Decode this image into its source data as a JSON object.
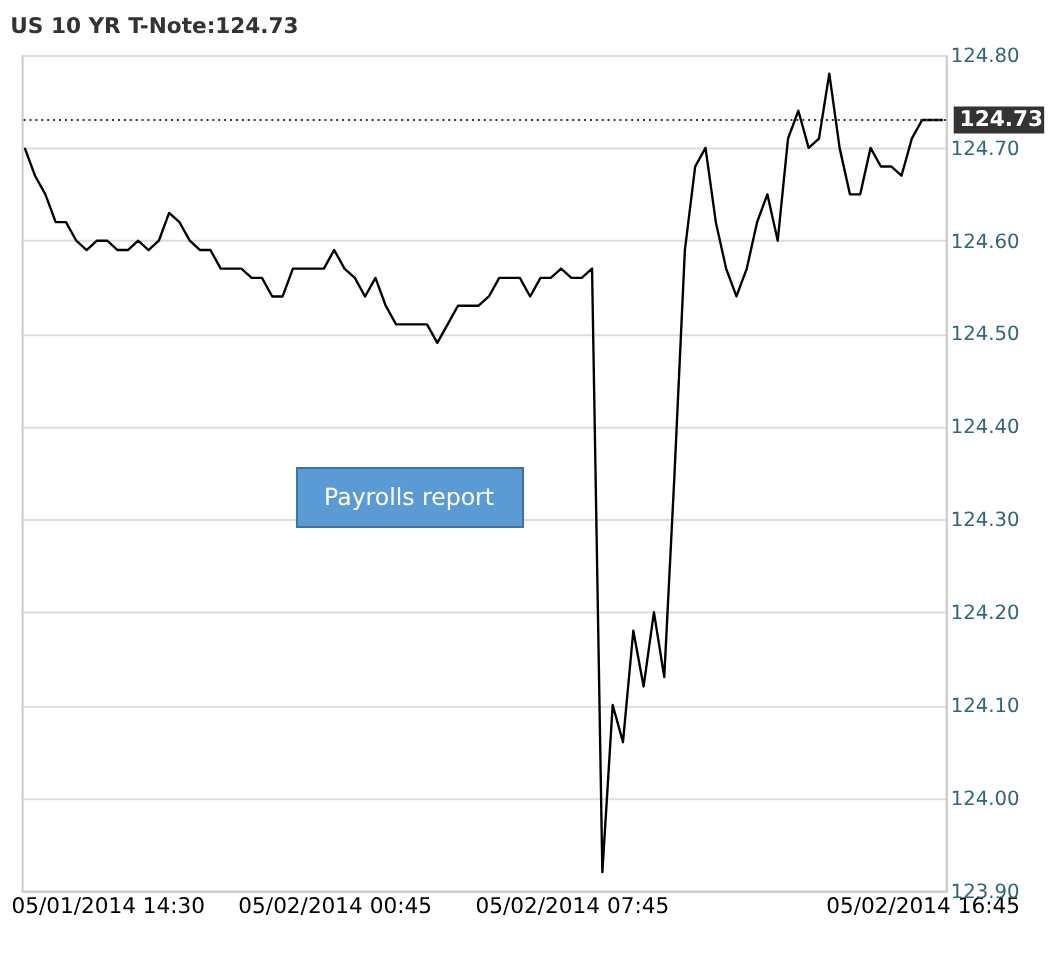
{
  "chart_data": {
    "type": "line",
    "title": "US 10 YR T-Note:124.73",
    "categories": [
      null,
      null,
      null,
      null,
      null,
      null,
      null,
      null,
      "05/01/2014 14:30",
      null,
      null,
      null,
      null,
      null,
      null,
      null,
      null,
      null,
      null,
      null,
      null,
      null,
      null,
      null,
      null,
      null,
      null,
      null,
      null,
      null,
      "05/02/2014 00:45",
      null,
      null,
      null,
      null,
      null,
      null,
      null,
      null,
      null,
      null,
      null,
      null,
      null,
      null,
      null,
      null,
      null,
      null,
      null,
      null,
      null,
      null,
      "05/02/2014 07:45",
      null,
      null,
      null,
      null,
      null,
      null,
      null,
      null,
      null,
      null,
      null,
      null,
      null,
      null,
      null,
      null,
      null,
      null,
      null,
      null,
      null,
      null,
      null,
      null,
      null,
      null,
      null,
      null,
      null,
      null,
      null,
      null,
      null,
      "05/02/2014 16:45",
      null,
      null
    ],
    "series": [
      {
        "color": "#000000",
        "values": [
          124.7,
          124.67,
          124.65,
          124.62,
          124.62,
          124.6,
          124.59,
          124.6,
          124.6,
          124.59,
          124.59,
          124.6,
          124.59,
          124.6,
          124.63,
          124.62,
          124.6,
          124.59,
          124.59,
          124.57,
          124.57,
          124.57,
          124.56,
          124.56,
          124.54,
          124.54,
          124.57,
          124.57,
          124.57,
          124.57,
          124.59,
          124.57,
          124.56,
          124.54,
          124.56,
          124.53,
          124.51,
          124.51,
          124.51,
          124.51,
          124.49,
          124.51,
          124.53,
          124.53,
          124.53,
          124.54,
          124.56,
          124.56,
          124.56,
          124.54,
          124.56,
          124.56,
          124.57,
          124.56,
          124.56,
          124.57,
          123.92,
          124.1,
          124.06,
          124.18,
          124.12,
          124.2,
          124.13,
          124.35,
          124.59,
          124.68,
          124.7,
          124.62,
          124.57,
          124.54,
          124.57,
          124.62,
          124.65,
          124.6,
          124.71,
          124.74,
          124.7,
          124.71,
          124.78,
          124.7,
          124.65,
          124.65,
          124.7,
          124.68,
          124.68,
          124.67,
          124.71,
          124.73,
          124.73,
          124.73
        ]
      }
    ],
    "ylim": [
      123.9,
      124.8
    ],
    "yticks": [
      {
        "value": 123.9,
        "label": "123.90"
      },
      {
        "value": 124.0,
        "label": "124.00"
      },
      {
        "value": 124.1,
        "label": "124.10"
      },
      {
        "value": 124.2,
        "label": "124.20"
      },
      {
        "value": 124.3,
        "label": "124.30"
      },
      {
        "value": 124.4,
        "label": "124.40"
      },
      {
        "value": 124.5,
        "label": "124.50"
      },
      {
        "value": 124.6,
        "label": "124.60"
      },
      {
        "value": 124.7,
        "label": "124.70"
      },
      {
        "value": 124.8,
        "label": "124.80"
      }
    ],
    "grid": "y",
    "marker": "none",
    "line_style": "solid",
    "ref_lines": [
      {
        "axis": "y",
        "value": 124.73,
        "label": "124.73",
        "line_style": "dotted",
        "color": "#333333"
      }
    ],
    "annotations": [
      "Payrolls report"
    ]
  }
}
